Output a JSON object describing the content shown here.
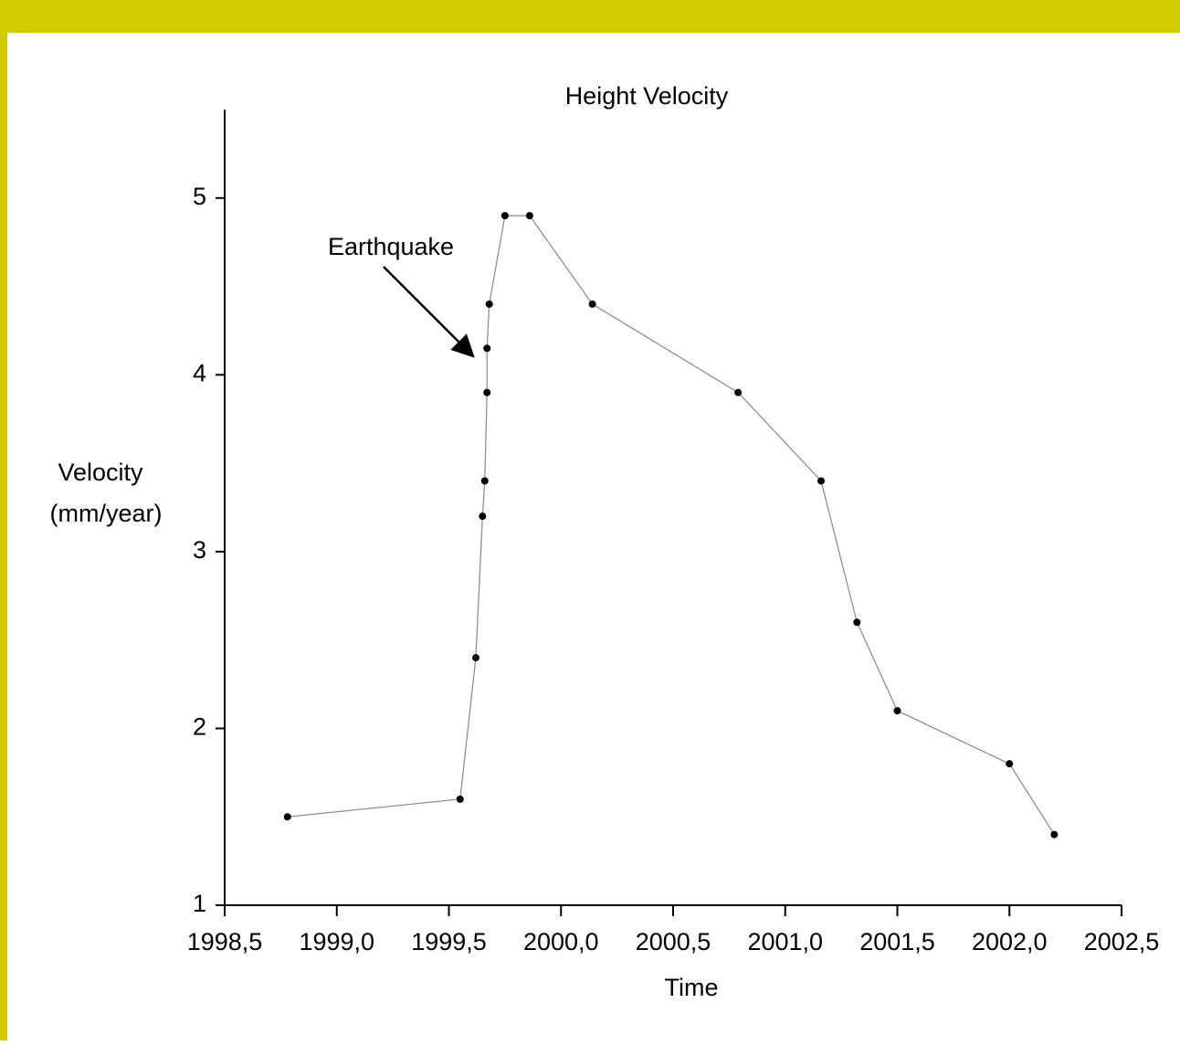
{
  "chart_data": {
    "type": "line",
    "title": "Height Velocity",
    "xlabel": "Time",
    "ylabel": [
      "Velocity",
      "(mm/year)"
    ],
    "annotation": "Earthquake",
    "x": [
      1998.78,
      1999.55,
      1999.62,
      1999.65,
      1999.66,
      1999.67,
      1999.67,
      1999.68,
      1999.75,
      1999.86,
      2000.14,
      2000.79,
      2001.16,
      2001.32,
      2001.5,
      2002.0,
      2002.2
    ],
    "series": [
      {
        "name": "Height Velocity",
        "color": "#000000",
        "values": [
          1.5,
          1.6,
          2.4,
          3.2,
          3.4,
          3.9,
          4.15,
          4.4,
          4.9,
          4.9,
          4.4,
          3.9,
          3.4,
          2.6,
          2.1,
          1.8,
          1.4
        ]
      }
    ],
    "xlim": [
      1998.5,
      2002.5
    ],
    "xticks": [
      {
        "value": 1998.5,
        "label": "1998,5"
      },
      {
        "value": 1999.0,
        "label": "1999,0"
      },
      {
        "value": 1999.5,
        "label": "1999,5"
      },
      {
        "value": 2000.0,
        "label": "2000,0"
      },
      {
        "value": 2000.5,
        "label": "2000,5"
      },
      {
        "value": 2001.0,
        "label": "2001,0"
      },
      {
        "value": 2001.5,
        "label": "2001,5"
      },
      {
        "value": 2002.0,
        "label": "2002,0"
      },
      {
        "value": 2002.5,
        "label": "2002,5"
      }
    ],
    "ylim": [
      1,
      5.5
    ],
    "yticks": [
      1,
      2,
      3,
      4,
      5
    ],
    "grid": false
  }
}
